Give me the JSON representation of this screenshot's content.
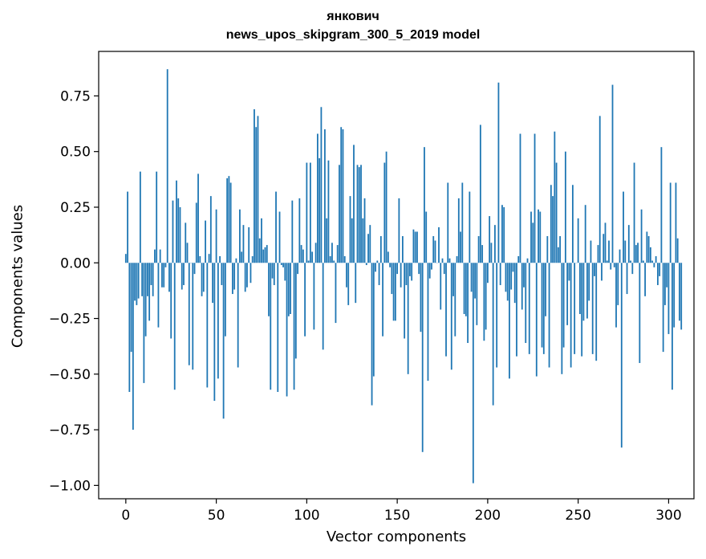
{
  "chart_data": {
    "type": "bar",
    "title": "янкович",
    "subtitle": "news_upos_skipgram_300_5_2019 model",
    "xlabel": "Vector components",
    "ylabel": "Components values",
    "xlim": [
      -15,
      314
    ],
    "ylim": [
      -1.06,
      0.95
    ],
    "xticks": [
      0,
      50,
      100,
      150,
      200,
      250,
      300
    ],
    "xtick_labels": [
      "0",
      "50",
      "100",
      "150",
      "200",
      "250",
      "300"
    ],
    "yticks": [
      -1.0,
      -0.75,
      -0.5,
      -0.25,
      0.0,
      0.25,
      0.5,
      0.75
    ],
    "ytick_labels": [
      "−1.00",
      "−0.75",
      "−0.50",
      "−0.25",
      "0.00",
      "0.25",
      "0.50",
      "0.75"
    ],
    "grid": false,
    "bar_color": "#1f77b4",
    "values": [
      0.04,
      0.32,
      -0.58,
      -0.4,
      -0.75,
      -0.17,
      -0.19,
      -0.16,
      0.41,
      -0.15,
      -0.54,
      -0.33,
      -0.15,
      -0.26,
      -0.1,
      -0.15,
      0.06,
      0.41,
      -0.29,
      0.06,
      -0.11,
      -0.11,
      -0.02,
      0.87,
      -0.13,
      -0.34,
      0.28,
      -0.57,
      0.37,
      0.29,
      0.25,
      -0.12,
      -0.1,
      0.18,
      0.09,
      -0.46,
      0.0,
      -0.48,
      -0.05,
      0.27,
      0.4,
      0.03,
      -0.15,
      -0.13,
      0.19,
      -0.56,
      0.04,
      0.3,
      -0.18,
      -0.62,
      0.24,
      -0.52,
      0.03,
      -0.1,
      -0.7,
      -0.33,
      0.38,
      0.39,
      0.36,
      -0.14,
      -0.12,
      0.02,
      -0.47,
      0.24,
      0.05,
      0.17,
      -0.13,
      -0.11,
      0.16,
      -0.09,
      0.03,
      0.69,
      0.61,
      0.66,
      0.11,
      0.2,
      0.06,
      0.07,
      0.08,
      -0.24,
      -0.57,
      -0.07,
      -0.1,
      0.32,
      -0.58,
      0.23,
      -0.01,
      -0.02,
      -0.08,
      -0.6,
      -0.24,
      -0.23,
      0.28,
      -0.57,
      -0.43,
      -0.05,
      0.29,
      0.08,
      0.06,
      -0.33,
      0.45,
      0.01,
      0.45,
      0.05,
      -0.3,
      0.09,
      0.58,
      0.47,
      0.7,
      -0.39,
      0.6,
      0.2,
      0.46,
      0.03,
      0.09,
      0.01,
      -0.27,
      0.08,
      0.44,
      0.61,
      0.6,
      0.03,
      -0.11,
      -0.19,
      0.3,
      0.2,
      0.53,
      -0.18,
      0.44,
      0.43,
      0.44,
      0.2,
      0.29,
      -0.01,
      0.13,
      0.17,
      -0.64,
      -0.51,
      -0.04,
      0.01,
      -0.1,
      0.12,
      -0.33,
      0.45,
      0.5,
      0.05,
      -0.02,
      -0.14,
      -0.26,
      -0.26,
      -0.05,
      0.29,
      -0.11,
      0.12,
      -0.34,
      -0.1,
      -0.5,
      -0.06,
      -0.08,
      0.15,
      0.14,
      0.14,
      -0.05,
      -0.31,
      -0.85,
      0.52,
      0.23,
      -0.53,
      -0.07,
      -0.03,
      0.12,
      0.1,
      0.0,
      0.16,
      -0.21,
      0.02,
      -0.05,
      -0.42,
      0.36,
      0.02,
      -0.48,
      -0.15,
      -0.33,
      0.03,
      0.29,
      0.14,
      0.36,
      -0.23,
      -0.24,
      -0.36,
      0.32,
      -0.13,
      -0.99,
      -0.16,
      -0.28,
      0.12,
      0.62,
      0.08,
      -0.35,
      -0.3,
      -0.09,
      0.21,
      0.09,
      -0.64,
      0.17,
      -0.47,
      0.81,
      -0.1,
      0.26,
      0.25,
      -0.13,
      -0.17,
      -0.52,
      -0.12,
      -0.04,
      -0.18,
      -0.42,
      0.03,
      0.58,
      -0.21,
      -0.11,
      -0.36,
      0.02,
      -0.41,
      0.23,
      0.18,
      0.58,
      -0.51,
      0.24,
      0.23,
      -0.38,
      -0.41,
      -0.24,
      0.12,
      -0.47,
      0.35,
      0.3,
      0.59,
      0.45,
      0.07,
      0.12,
      -0.5,
      -0.38,
      0.5,
      -0.28,
      -0.08,
      -0.47,
      0.35,
      -0.41,
      0.0,
      0.2,
      -0.23,
      -0.42,
      -0.26,
      0.26,
      -0.25,
      -0.17,
      0.1,
      -0.41,
      -0.06,
      -0.44,
      0.08,
      0.66,
      -0.08,
      0.13,
      0.18,
      0.01,
      0.1,
      -0.03,
      0.8,
      -0.02,
      -0.29,
      -0.19,
      0.06,
      -0.83,
      0.32,
      0.1,
      -0.14,
      0.17,
      0.01,
      -0.05,
      0.45,
      0.08,
      0.09,
      -0.45,
      0.24,
      0.01,
      -0.15,
      0.14,
      0.12,
      0.07,
      0.01,
      -0.02,
      0.03,
      -0.1,
      -0.06,
      0.52,
      -0.4,
      -0.19,
      -0.11,
      -0.32,
      0.36,
      -0.57,
      -0.29,
      0.36,
      0.11,
      -0.26,
      -0.3
    ]
  }
}
